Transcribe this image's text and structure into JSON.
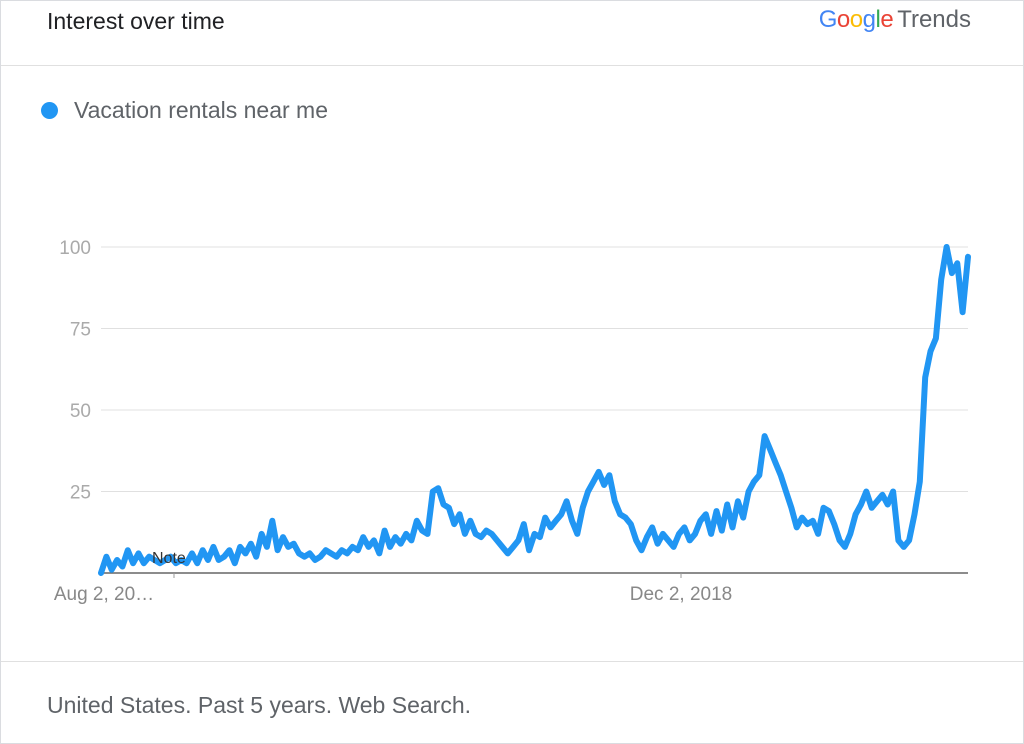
{
  "header": {
    "title": "Interest over time",
    "brand_letters": [
      "G",
      "o",
      "o",
      "g",
      "l",
      "e"
    ],
    "brand_colors": [
      "#4285F4",
      "#EA4335",
      "#FBBC05",
      "#4285F4",
      "#34A853",
      "#EA4335"
    ],
    "brand_suffix": "Trends"
  },
  "legend": {
    "label": "Vacation rentals near me",
    "color": "#2196F3"
  },
  "footer": {
    "text": "United States. Past 5 years. Web Search."
  },
  "chart_data": {
    "type": "line",
    "ylim": [
      0,
      100
    ],
    "yticks": [
      25,
      50,
      75,
      100
    ],
    "x_labels": [
      "Aug 2, 20…",
      "Dec 2, 2018"
    ],
    "annotation": "Note",
    "grid": true,
    "series": [
      {
        "name": "Vacation rentals near me",
        "color": "#2196F3",
        "values": [
          0,
          5,
          1,
          4,
          2,
          7,
          3,
          6,
          3,
          5,
          4,
          3,
          4,
          5,
          3,
          4,
          3,
          6,
          3,
          7,
          4,
          8,
          4,
          5,
          7,
          3,
          8,
          6,
          9,
          5,
          12,
          8,
          16,
          7,
          11,
          8,
          9,
          6,
          5,
          6,
          4,
          5,
          7,
          6,
          5,
          7,
          6,
          8,
          7,
          11,
          8,
          10,
          6,
          13,
          8,
          11,
          9,
          12,
          10,
          16,
          13,
          12,
          25,
          26,
          21,
          20,
          15,
          18,
          12,
          16,
          12,
          11,
          13,
          12,
          10,
          8,
          6,
          8,
          10,
          15,
          7,
          12,
          11,
          17,
          14,
          16,
          18,
          22,
          16,
          12,
          20,
          25,
          28,
          31,
          27,
          30,
          22,
          18,
          17,
          15,
          10,
          7,
          11,
          14,
          9,
          12,
          10,
          8,
          12,
          14,
          10,
          12,
          16,
          18,
          12,
          19,
          13,
          21,
          14,
          22,
          17,
          25,
          28,
          30,
          42,
          38,
          34,
          30,
          25,
          20,
          14,
          17,
          15,
          16,
          12,
          20,
          19,
          15,
          10,
          8,
          12,
          18,
          21,
          25,
          20,
          22,
          24,
          21,
          25,
          10,
          8,
          10,
          18,
          28,
          60,
          68,
          72,
          90,
          100,
          92,
          95,
          80,
          97
        ]
      }
    ]
  }
}
